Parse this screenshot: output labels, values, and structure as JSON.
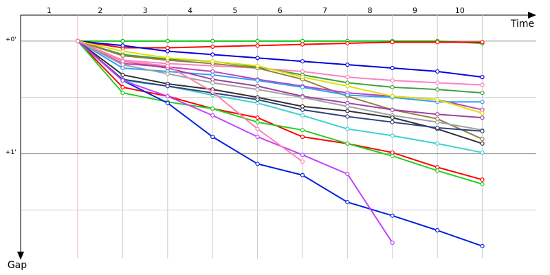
{
  "chart_data": {
    "type": "line",
    "x_axis_label": "Time",
    "y_axis_label": "Gap",
    "categories": [
      "1",
      "2",
      "3",
      "4",
      "5",
      "6",
      "7",
      "8",
      "9",
      "10"
    ],
    "x": [
      1,
      2,
      3,
      4,
      5,
      6,
      7,
      8,
      9,
      10
    ],
    "xlim": [
      -0.27,
      11.2
    ],
    "ylim": [
      -0.23,
      1.93
    ],
    "y_inverted": true,
    "yticks": [
      {
        "value": 0,
        "label": "+0'"
      },
      {
        "value": 1,
        "label": "+1'"
      }
    ],
    "minor_yticks": [
      0.5,
      1.5
    ],
    "grid": true,
    "series": [
      {
        "color": "#00c000",
        "values": [
          0,
          0,
          0,
          0,
          0,
          0,
          0,
          0,
          0,
          0.02
        ]
      },
      {
        "color": "#ff0000",
        "values": [
          0,
          0.06,
          0.06,
          0.05,
          0.04,
          0.03,
          0.02,
          0.01,
          0.01,
          0.01
        ]
      },
      {
        "color": "#0000e0",
        "values": [
          0,
          0.04,
          0.09,
          0.12,
          0.15,
          0.18,
          0.21,
          0.24,
          0.27,
          0.32
        ]
      },
      {
        "color": "#ff80c0",
        "values": [
          0,
          0.17,
          0.2,
          0.22,
          0.24,
          0.27,
          0.32,
          0.35,
          0.37,
          0.39
        ]
      },
      {
        "color": "#40a040",
        "values": [
          0,
          0.12,
          0.16,
          0.18,
          0.23,
          0.3,
          0.37,
          0.41,
          0.43,
          0.46
        ]
      },
      {
        "color": "#908040",
        "values": [
          0,
          0.13,
          0.17,
          0.2,
          0.24,
          0.34,
          0.49,
          0.61,
          0.69,
          0.87
        ]
      },
      {
        "color": "#c040c0",
        "values": [
          0,
          0.2,
          0.23,
          0.27,
          0.34,
          0.4,
          0.46,
          0.49,
          0.52,
          0.61
        ]
      },
      {
        "color": "#30a0f0",
        "values": [
          0,
          0.24,
          0.27,
          0.3,
          0.35,
          0.41,
          0.48,
          0.5,
          0.54,
          0.54
        ]
      },
      {
        "color": "#e0e000",
        "values": [
          0,
          0.09,
          0.15,
          0.18,
          0.22,
          0.32,
          0.4,
          0.49,
          0.52,
          0.64
        ]
      },
      {
        "color": "#a040a0",
        "values": [
          0,
          0.18,
          0.24,
          0.34,
          0.4,
          0.49,
          0.55,
          0.61,
          0.65,
          0.68
        ]
      },
      {
        "color": "#a0a0a0",
        "values": [
          0,
          0.21,
          0.29,
          0.37,
          0.43,
          0.5,
          0.58,
          0.66,
          0.72,
          0.79
        ]
      },
      {
        "color": "#40d0d0",
        "values": [
          0,
          0.35,
          0.4,
          0.48,
          0.55,
          0.66,
          0.78,
          0.84,
          0.91,
          0.99
        ]
      },
      {
        "color": "#303030",
        "values": [
          0,
          0.3,
          0.38,
          0.43,
          0.5,
          0.58,
          0.62,
          0.68,
          0.78,
          0.91
        ]
      },
      {
        "color": "#304080",
        "values": [
          0,
          0.34,
          0.4,
          0.46,
          0.52,
          0.61,
          0.67,
          0.72,
          0.77,
          0.8
        ]
      },
      {
        "color": "#ff0000",
        "values": [
          0,
          0.41,
          0.49,
          0.6,
          0.68,
          0.85,
          0.91,
          0.99,
          1.12,
          1.23
        ]
      },
      {
        "color": "#20d020",
        "values": [
          0,
          0.46,
          0.54,
          0.6,
          0.72,
          0.79,
          0.91,
          1.02,
          1.15,
          1.27
        ]
      },
      {
        "color": "#0020e0",
        "values": [
          0,
          0.35,
          0.55,
          0.85,
          1.09,
          1.19,
          1.43,
          1.55,
          1.68,
          1.82
        ]
      },
      {
        "color": "#c040ff",
        "values": [
          0,
          0.35,
          0.49,
          0.66,
          0.85,
          1.01,
          1.18,
          1.79,
          null,
          null
        ]
      },
      {
        "color": "#ff80b0",
        "values": [
          0,
          0.18,
          0.22,
          0.45,
          0.78,
          1.07,
          null,
          null,
          null,
          null
        ]
      }
    ]
  }
}
